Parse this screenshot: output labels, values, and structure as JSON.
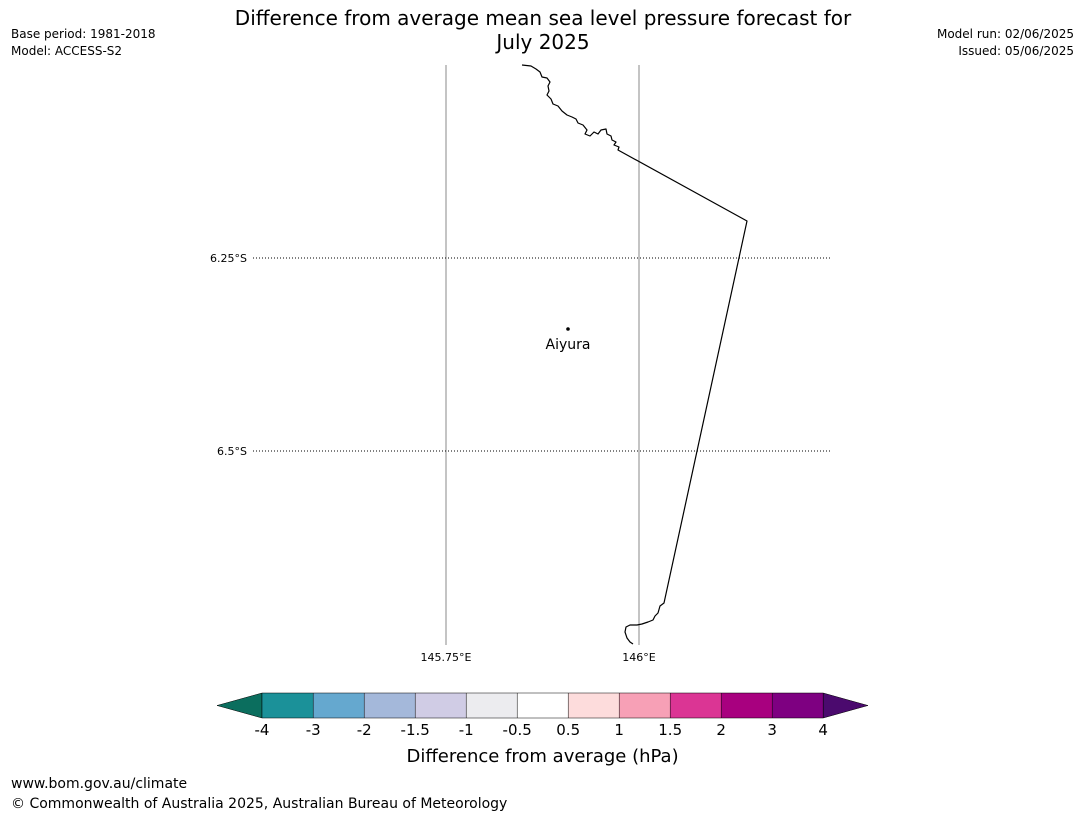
{
  "header": {
    "base_period": "Base period: 1981-2018",
    "model": "Model: ACCESS-S2",
    "model_run": "Model run: 02/06/2025",
    "issued": "Issued: 05/06/2025",
    "title_line1": "Difference from average mean sea level pressure forecast for",
    "title_line2": "July 2025"
  },
  "map": {
    "latitude_labels": [
      "6.25°S",
      "6.5°S"
    ],
    "longitude_labels": [
      "145.75°E",
      "146°E"
    ],
    "place": {
      "name": "Aiyura"
    }
  },
  "colorbar": {
    "label": "Difference from average (hPa)",
    "ticks": [
      "-4",
      "-3",
      "-2",
      "-1.5",
      "-1",
      "-0.5",
      "0.5",
      "1",
      "1.5",
      "2",
      "3",
      "4"
    ],
    "low_extend_color": "#0b6e5e",
    "high_extend_color": "#4b0a6e",
    "colors": [
      "#1b9199",
      "#65a8cf",
      "#a4b8da",
      "#d0cce5",
      "#ececef",
      "#ffffff",
      "#fddcdc",
      "#f7a0b6",
      "#db3594",
      "#a8007f",
      "#7e0081"
    ]
  },
  "footer": {
    "url": "www.bom.gov.au/climate",
    "copyright": "© Commonwealth of Australia 2025, Australian Bureau of Meteorology"
  }
}
